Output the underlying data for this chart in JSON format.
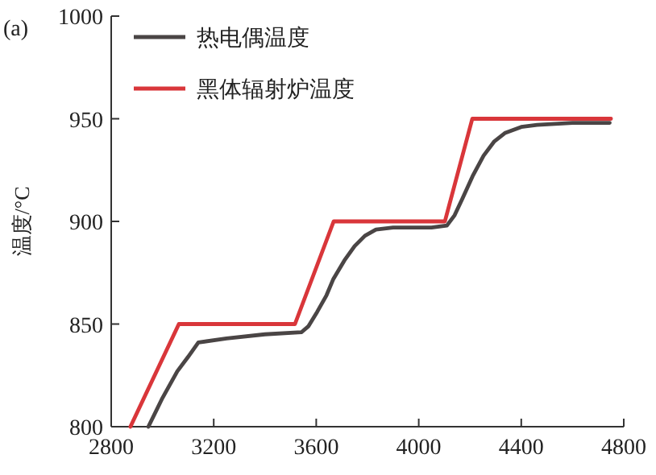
{
  "chart_data": {
    "type": "line",
    "ylabel": "温度/°C",
    "annotations": [
      "(a)"
    ],
    "legend": "top left",
    "grid": false,
    "marker": "none",
    "line_style": "solid",
    "xlim": [
      2800,
      4800
    ],
    "xticks": [
      2800,
      3200,
      3600,
      4000,
      4400,
      4800
    ],
    "ylim": [
      800,
      1000
    ],
    "yticks": [
      800,
      850,
      900,
      950,
      1000
    ],
    "series": [
      {
        "name": "热电偶温度",
        "color": "#4a4545",
        "x": [
          2945,
          3000,
          3058,
          3100,
          3140,
          3250,
          3400,
          3542,
          3570,
          3604,
          3640,
          3667,
          3710,
          3750,
          3790,
          3833,
          3900,
          3958,
          4050,
          4110,
          4140,
          4170,
          4210,
          4253,
          4295,
          4336,
          4400,
          4462,
          4600,
          4745
        ],
        "values": [
          800,
          814,
          827,
          834,
          841,
          843,
          845,
          846,
          849,
          856,
          864,
          872,
          881,
          888,
          893,
          896,
          897,
          897,
          897,
          898,
          903,
          911,
          922,
          932,
          939,
          943,
          946,
          947,
          948,
          948
        ]
      },
      {
        "name": "黑体辐射炉温度",
        "color": "#d9363a",
        "x": [
          2875,
          3064,
          3517,
          3668,
          4102,
          4209,
          4750
        ],
        "values": [
          800,
          850,
          850,
          900,
          900,
          950,
          950
        ]
      }
    ]
  }
}
